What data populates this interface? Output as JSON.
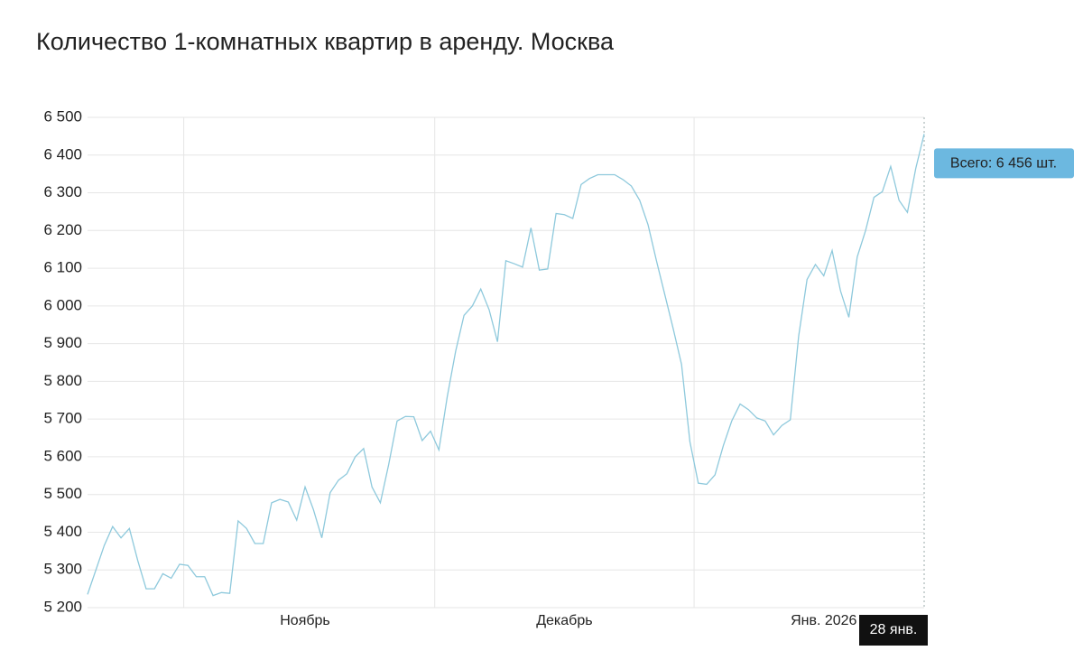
{
  "chart_data": {
    "type": "line",
    "title": "Количество 1-комнатных квартир в аренду. Москва",
    "categories": [
      null,
      null,
      null,
      null,
      null,
      null,
      null,
      null,
      null,
      null,
      null,
      null,
      null,
      null,
      null,
      null,
      null,
      null,
      null,
      null,
      null,
      null,
      null,
      null,
      null,
      null,
      "Ноябрь",
      null,
      null,
      null,
      null,
      null,
      null,
      null,
      null,
      null,
      null,
      null,
      null,
      null,
      null,
      null,
      null,
      null,
      null,
      null,
      null,
      null,
      null,
      null,
      null,
      null,
      null,
      null,
      null,
      null,
      null,
      "Декабрь",
      null,
      null,
      null,
      null,
      null,
      null,
      null,
      null,
      null,
      null,
      null,
      null,
      null,
      null,
      null,
      null,
      null,
      null,
      null,
      null,
      null,
      null,
      null,
      null,
      null,
      null,
      null,
      null,
      null,
      null,
      "Янв. 2026",
      null,
      null,
      null,
      null,
      null,
      null,
      null,
      null,
      null,
      null,
      null,
      "28 янв."
    ],
    "series": [
      {
        "color": "#8ec9dc",
        "values": [
          5235,
          5300,
          5365,
          5415,
          5385,
          5410,
          5325,
          5250,
          5250,
          5290,
          5278,
          5315,
          5312,
          5282,
          5282,
          5232,
          5240,
          5238,
          5430,
          5410,
          5370,
          5370,
          5478,
          5487,
          5480,
          5432,
          5520,
          5460,
          5385,
          5505,
          5538,
          5555,
          5600,
          5622,
          5520,
          5478,
          5580,
          5695,
          5707,
          5706,
          5643,
          5668,
          5618,
          5760,
          5880,
          5975,
          6000,
          6045,
          5990,
          5905,
          6120,
          6112,
          6103,
          6207,
          6095,
          6098,
          6245,
          6242,
          6232,
          6322,
          6338,
          6348,
          6348,
          6348,
          6335,
          6318,
          6280,
          6215,
          6120,
          6030,
          5940,
          5845,
          5640,
          5530,
          5527,
          5552,
          5630,
          5695,
          5740,
          5725,
          5703,
          5695,
          5658,
          5683,
          5698,
          5920,
          6070,
          6110,
          6080,
          6147,
          6040,
          5970,
          6130,
          6200,
          6288,
          6303,
          6370,
          6280,
          6248,
          6365,
          6456
        ],
        "value_labels": [
          null,
          null,
          null,
          null,
          null,
          null,
          null,
          null,
          null,
          null,
          null,
          null,
          null,
          null,
          null,
          null,
          null,
          null,
          null,
          null,
          null,
          null,
          null,
          null,
          null,
          null,
          null,
          null,
          null,
          null,
          null,
          null,
          null,
          null,
          null,
          null,
          null,
          null,
          null,
          null,
          null,
          null,
          null,
          null,
          null,
          null,
          null,
          null,
          null,
          null,
          null,
          null,
          null,
          null,
          null,
          null,
          null,
          null,
          null,
          null,
          null,
          null,
          null,
          null,
          null,
          null,
          null,
          null,
          null,
          null,
          null,
          null,
          null,
          null,
          null,
          null,
          null,
          null,
          null,
          null,
          null,
          null,
          null,
          null,
          null,
          null,
          null,
          null,
          null,
          null,
          null,
          null,
          null,
          null,
          null,
          null,
          null,
          null,
          null,
          null,
          "Всего: 6 456 шт."
        ]
      }
    ],
    "ylim": [
      5200,
      6500
    ],
    "yticks": [
      {
        "value": 5200,
        "label": "5 200"
      },
      {
        "value": 5300,
        "label": "5 300"
      },
      {
        "value": 5400,
        "label": "5 400"
      },
      {
        "value": 5500,
        "label": "5 500"
      },
      {
        "value": 5600,
        "label": "5 600"
      },
      {
        "value": 5700,
        "label": "5 700"
      },
      {
        "value": 5800,
        "label": "5 800"
      },
      {
        "value": 5900,
        "label": "5 900"
      },
      {
        "value": 6000,
        "label": "6 000"
      },
      {
        "value": 6100,
        "label": "6 100"
      },
      {
        "value": 6200,
        "label": "6 200"
      },
      {
        "value": 6300,
        "label": "6 300"
      },
      {
        "value": 6400,
        "label": "6 400"
      },
      {
        "value": 6500,
        "label": "6 500"
      }
    ],
    "grid": true
  }
}
